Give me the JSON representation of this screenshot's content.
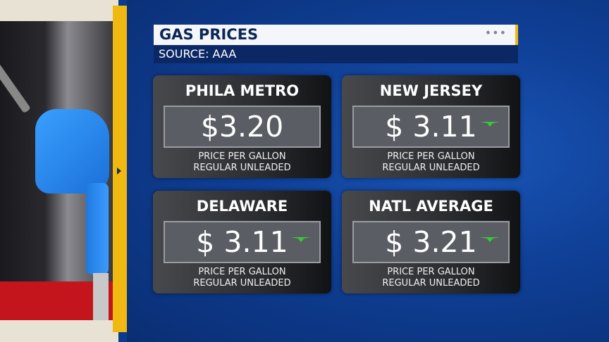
{
  "header": {
    "title": "GAS PRICES",
    "menu_icon": "more-dots-icon",
    "source": "SOURCE: AAA"
  },
  "colors": {
    "accent": "#f0b912",
    "background": "#0f3f96",
    "trend_down": "#38c83a"
  },
  "cards": [
    {
      "region": "PHILA METRO",
      "price": "$3.20",
      "trend": "none",
      "line1": "PRICE PER GALLON",
      "line2": "REGULAR UNLEADED"
    },
    {
      "region": "NEW JERSEY",
      "price": "$ 3.11",
      "trend": "down",
      "line1": "PRICE PER GALLON",
      "line2": "REGULAR UNLEADED"
    },
    {
      "region": "DELAWARE",
      "price": "$ 3.11",
      "trend": "down",
      "line1": "PRICE PER GALLON",
      "line2": "REGULAR UNLEADED"
    },
    {
      "region": "NATL AVERAGE",
      "price": "$ 3.21",
      "trend": "down",
      "line1": "PRICE PER GALLON",
      "line2": "REGULAR UNLEADED"
    }
  ]
}
